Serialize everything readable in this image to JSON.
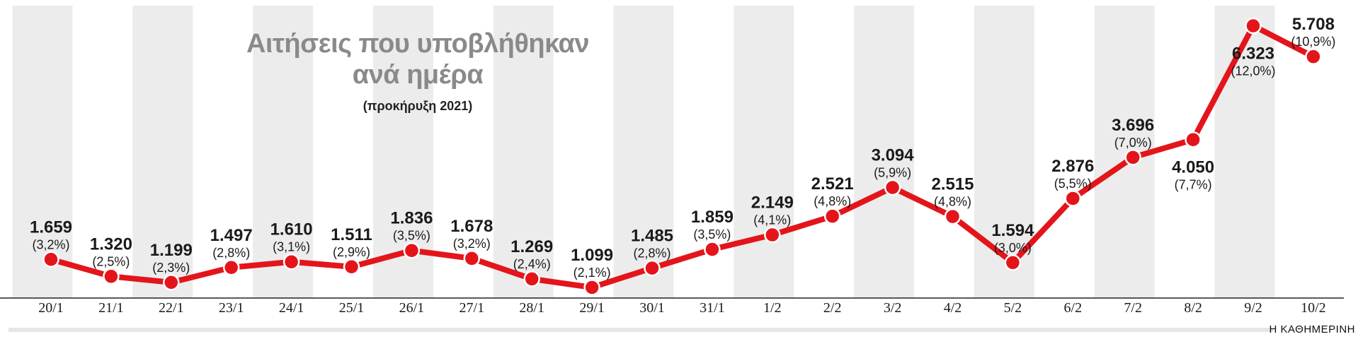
{
  "title_line1": "Αιτήσεις που υποβλήθηκαν",
  "title_line2": "ανά ημέρα",
  "subtitle": "(προκήρυξη 2021)",
  "source": "Η ΚΑΘΗΜΕΡΙΝΗ",
  "colors": {
    "line": "#e3151b",
    "stripe": "#ececec",
    "axis": "#222222",
    "title": "#8a8a8a"
  },
  "chart_data": {
    "type": "line",
    "title": "Αιτήσεις που υποβλήθηκαν ανά ημέρα",
    "subtitle": "(προκήρυξη 2021)",
    "xlabel": "",
    "ylabel": "",
    "grid": false,
    "categories": [
      "20/1",
      "21/1",
      "22/1",
      "23/1",
      "24/1",
      "25/1",
      "26/1",
      "27/1",
      "28/1",
      "29/1",
      "30/1",
      "31/1",
      "1/2",
      "2/2",
      "3/2",
      "4/2",
      "5/2",
      "6/2",
      "7/2",
      "8/2",
      "9/2",
      "10/2"
    ],
    "values": [
      1659,
      1320,
      1199,
      1497,
      1610,
      1511,
      1836,
      1678,
      1269,
      1099,
      1485,
      1859,
      2149,
      2521,
      3094,
      2515,
      1594,
      2876,
      3696,
      4050,
      6323,
      5708
    ],
    "value_labels": [
      "1.659",
      "1.320",
      "1.199",
      "1.497",
      "1.610",
      "1.511",
      "1.836",
      "1.678",
      "1.269",
      "1.099",
      "1.485",
      "1.859",
      "2.149",
      "2.521",
      "3.094",
      "2.515",
      "1.594",
      "2.876",
      "3.696",
      "4.050",
      "6.323",
      "5.708"
    ],
    "percent_labels": [
      "(3,2%)",
      "(2,5%)",
      "(2,3%)",
      "(2,8%)",
      "(3,1%)",
      "(2,9%)",
      "(3,5%)",
      "(3,2%)",
      "(2,4%)",
      "(2,1%)",
      "(2,8%)",
      "(3,5%)",
      "(4,1%)",
      "(4,8%)",
      "(5,9%)",
      "(4,8%)",
      "(3,0%)",
      "(5,5%)",
      "(7,0%)",
      "(7,7%)",
      "(12,0%)",
      "(10,9%)"
    ],
    "label_position": [
      "above",
      "above",
      "above",
      "above",
      "above",
      "above",
      "above",
      "above",
      "above",
      "above",
      "above",
      "above",
      "above",
      "above",
      "above",
      "above",
      "above",
      "above",
      "above",
      "below",
      "below",
      "above"
    ]
  }
}
